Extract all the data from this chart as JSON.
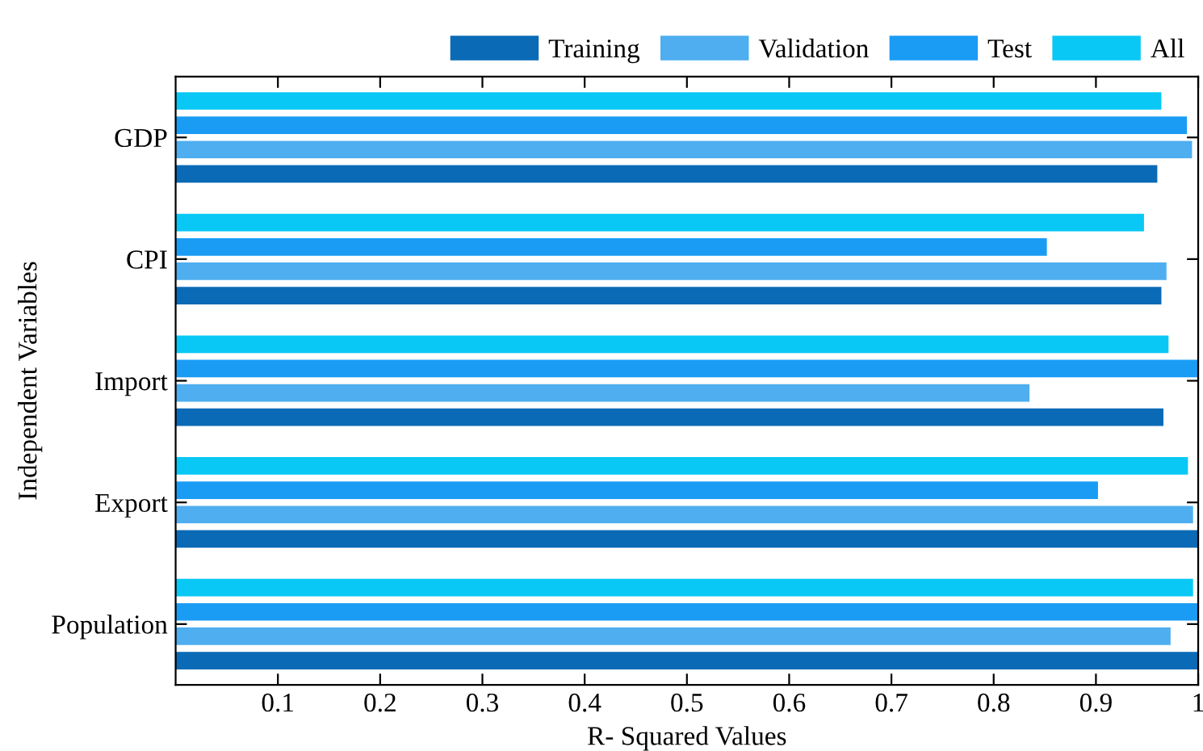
{
  "chart_data": {
    "type": "bar",
    "orientation": "horizontal",
    "xlabel": "R- Squared Values",
    "ylabel": "Independent Variables",
    "categories": [
      "GDP",
      "CPI",
      "Import",
      "Export",
      "Population"
    ],
    "series": [
      {
        "name": "Training",
        "color": "#0a6ab6",
        "values": [
          0.96,
          0.964,
          0.966,
          1.0,
          1.0
        ]
      },
      {
        "name": "Validation",
        "color": "#4eaef0",
        "values": [
          0.994,
          0.969,
          0.835,
          0.995,
          0.973
        ]
      },
      {
        "name": "Test",
        "color": "#1a9cf5",
        "values": [
          0.989,
          0.852,
          1.0,
          0.902,
          1.0
        ]
      },
      {
        "name": "All",
        "color": "#09c8f5",
        "values": [
          0.964,
          0.947,
          0.971,
          0.99,
          0.995
        ]
      }
    ],
    "xlim": [
      0,
      1
    ],
    "xticks": [
      0.1,
      0.2,
      0.3,
      0.4,
      0.5,
      0.6,
      0.7,
      0.8,
      0.9,
      1
    ],
    "grid": false,
    "legend": "top right"
  }
}
